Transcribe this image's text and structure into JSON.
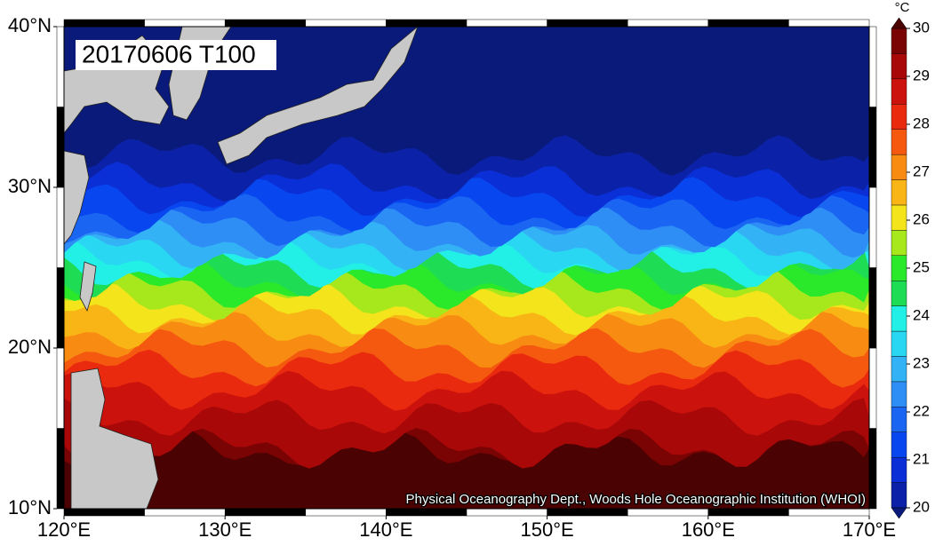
{
  "map": {
    "label": "20170606 T100",
    "credit": "Physical Oceanography Dept., Woods Hole Oceanographic Institution (WHOI)",
    "xlim": [
      120,
      170
    ],
    "ylim": [
      10,
      40
    ],
    "xticks": [
      {
        "value": 120,
        "label": "120°E"
      },
      {
        "value": 130,
        "label": "130°E"
      },
      {
        "value": 140,
        "label": "140°E"
      },
      {
        "value": 150,
        "label": "150°E"
      },
      {
        "value": 160,
        "label": "160°E"
      },
      {
        "value": 170,
        "label": "170°E"
      }
    ],
    "yticks": [
      {
        "value": 10,
        "label": "10°N"
      },
      {
        "value": 20,
        "label": "20°N"
      },
      {
        "value": 30,
        "label": "30°N"
      },
      {
        "value": 40,
        "label": "40°N"
      }
    ]
  },
  "colorbar": {
    "unit": "°C",
    "lim": [
      20,
      30
    ],
    "ticks": [
      20,
      21,
      22,
      23,
      24,
      25,
      26,
      27,
      28,
      29,
      30
    ],
    "colors": [
      "#0a1a7a",
      "#0b22a8",
      "#0a2fd6",
      "#0847f0",
      "#1a66f2",
      "#2e8ef5",
      "#33b3f5",
      "#29d7f2",
      "#22f0e6",
      "#1fdc55",
      "#2ae82a",
      "#a6e81c",
      "#f3e41b",
      "#f9b515",
      "#f88b12",
      "#f5580f",
      "#ea2a0e",
      "#cc120c",
      "#a80808",
      "#7a0303",
      "#4a0202"
    ]
  }
}
